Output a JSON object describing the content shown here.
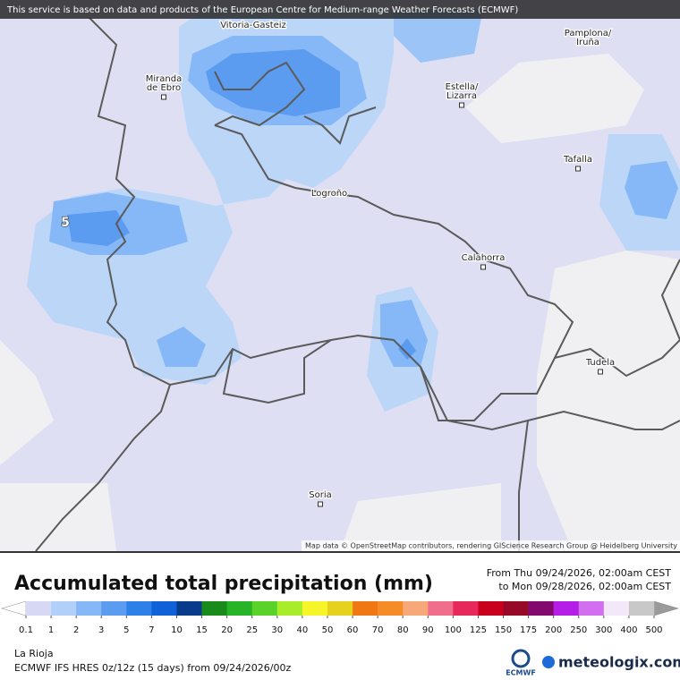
{
  "banner": "This service is based on data and products of the European Centre for Medium-range Weather Forecasts (ECMWF)",
  "map": {
    "places": [
      {
        "lines": [
          "Vitoria-Gasteiz"
        ],
        "dot": false
      },
      {
        "lines": [
          "Pamplona/",
          "Iruña"
        ],
        "dot": false
      },
      {
        "lines": [
          "Miranda",
          "de Ebro"
        ],
        "dot": true
      },
      {
        "lines": [
          "Estella/",
          "Lizarra"
        ],
        "dot": true
      },
      {
        "lines": [
          "Tafalla"
        ],
        "dot": true
      },
      {
        "lines": [
          "Logroño"
        ],
        "dot": false
      },
      {
        "lines": [
          "Calahorra"
        ],
        "dot": true
      },
      {
        "lines": [
          "Tudela"
        ],
        "dot": true
      },
      {
        "lines": [
          "Soria"
        ],
        "dot": true
      }
    ],
    "contour_label": "5",
    "attribution": "Map data © OpenStreetMap contributors, rendering GIScience Research Group @ Heidelberg University"
  },
  "legend": {
    "title": "Accumulated total precipitation (mm)",
    "period": [
      "From Thu 09/24/2026, 02:00am CEST",
      "to Mon 09/28/2026, 02:00am CEST"
    ],
    "ticks": [
      0.1,
      1,
      2,
      3,
      5,
      7,
      10,
      15,
      20,
      25,
      30,
      40,
      50,
      60,
      70,
      80,
      90,
      100,
      125,
      150,
      175,
      200,
      250,
      300,
      400,
      500
    ],
    "colors": [
      "#d7d9f4",
      "#b0d0fa",
      "#86b8f7",
      "#5b9cf0",
      "#2f7fe8",
      "#1060d8",
      "#0a3a8c",
      "#1a8a1a",
      "#28b428",
      "#5ad22a",
      "#a8ec2a",
      "#f5f52a",
      "#e6d21e",
      "#f07814",
      "#f58c28",
      "#f6a878",
      "#f06e8c",
      "#e6285a",
      "#c8001e",
      "#960a28",
      "#820a6e",
      "#b41ee6",
      "#d26ef0",
      "#f2e8f8",
      "#c8c8c8"
    ],
    "under_color": "#ffffff",
    "over_color": "#9a9a9a"
  },
  "footer": {
    "region": "La Rioja",
    "model": "ECMWF IFS HRES 0z/12z (15 days) from  09/24/2026/00z",
    "logos": [
      "ECMWF",
      "meteologix.com"
    ]
  }
}
